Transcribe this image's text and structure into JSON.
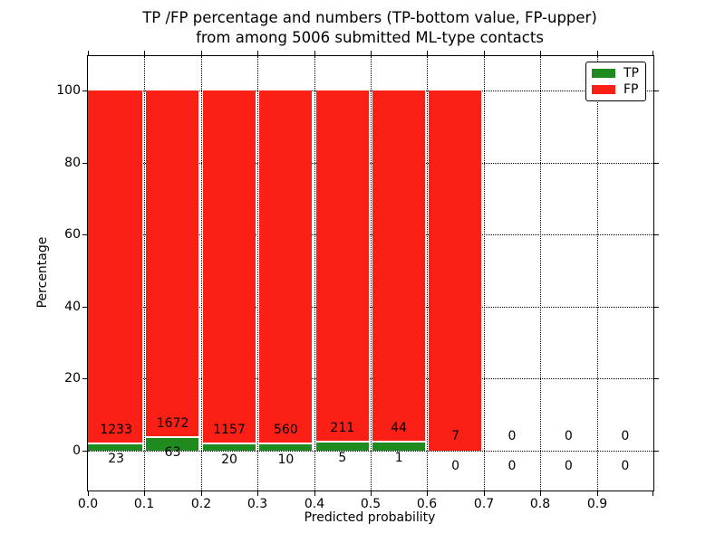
{
  "figure": {
    "title_line1": "TP /FP percentage and numbers (TP-bottom value, FP-upper)",
    "title_line2": "from among 5006 submitted ML-type contacts",
    "xlabel": "Predicted probability",
    "ylabel": "Percentage"
  },
  "legend": {
    "items": [
      {
        "label": "TP",
        "color": "#1f8b1f"
      },
      {
        "label": "FP",
        "color": "#fb2016"
      }
    ]
  },
  "chart_data": {
    "type": "bar",
    "stacked": true,
    "normalized_to_percent": true,
    "title": "TP /FP percentage and numbers (TP-bottom value, FP-upper) from among 5006 submitted ML-type contacts",
    "xlabel": "Predicted probability",
    "ylabel": "Percentage",
    "x_ticks": [
      "0.0",
      "0.1",
      "0.2",
      "0.3",
      "0.4",
      "0.5",
      "0.6",
      "0.7",
      "0.8",
      "0.9"
    ],
    "y_ticks": [
      0,
      20,
      40,
      60,
      80,
      100
    ],
    "xlim": [
      0.0,
      1.0
    ],
    "ylim": [
      -11,
      109.5
    ],
    "bin_width": 0.1,
    "grid": "dotted",
    "legend_position": "upper right",
    "series": [
      {
        "name": "TP",
        "color": "#1f8b1f",
        "values": [
          23,
          63,
          20,
          10,
          5,
          1,
          0,
          0,
          0,
          0
        ]
      },
      {
        "name": "FP",
        "color": "#fb2016",
        "values": [
          1233,
          1672,
          1157,
          560,
          211,
          44,
          7,
          0,
          0,
          0
        ]
      }
    ],
    "total_contacts": 5006
  }
}
